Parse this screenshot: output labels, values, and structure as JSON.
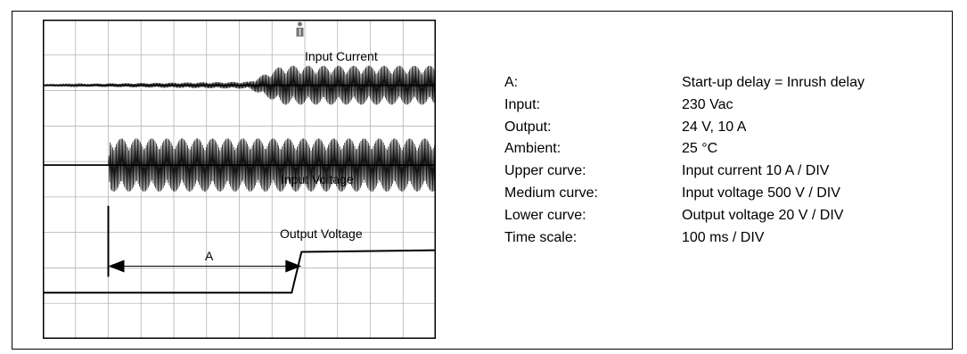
{
  "chart_data": {
    "type": "line",
    "title": "",
    "xlabel": "",
    "ylabel": "",
    "x_divisions": 12,
    "y_divisions": 9,
    "series": [
      {
        "name": "Input Current",
        "baseline_div": 1.85,
        "envelope": [
          {
            "t_div": 0,
            "amp_div": 0.02
          },
          {
            "t_div": 1.8,
            "amp_div": 0.05
          },
          {
            "t_div": 6.3,
            "amp_div": 0.1
          },
          {
            "t_div": 7.3,
            "amp_div": 0.55
          },
          {
            "t_div": 12,
            "amp_div": 0.55
          }
        ]
      },
      {
        "name": "Input Voltage",
        "baseline_div": 4.1,
        "envelope": [
          {
            "t_div": 0,
            "amp_div": 0.0
          },
          {
            "t_div": 2.0,
            "amp_div": 0.0
          },
          {
            "t_div": 2.05,
            "amp_div": 0.75
          },
          {
            "t_div": 12,
            "amp_div": 0.75
          }
        ]
      },
      {
        "name": "Output Voltage",
        "points": [
          {
            "t_div": 0,
            "v_div": 7.7
          },
          {
            "t_div": 7.6,
            "v_div": 7.7
          },
          {
            "t_div": 7.9,
            "v_div": 6.55
          },
          {
            "t_div": 12,
            "v_div": 6.5
          }
        ]
      }
    ],
    "annotations": [
      {
        "label": "A",
        "from_t_div": 2.0,
        "to_t_div": 7.9,
        "at_v_div": 6.95
      }
    ],
    "trigger_marker_t_div": 7.85
  },
  "labels": {
    "input_current": "Input Current",
    "input_voltage": "Input Voltage",
    "output_voltage": "Output Voltage",
    "a_marker": "A"
  },
  "info": [
    {
      "key": "A:",
      "value": "Start-up delay = Inrush delay"
    },
    {
      "key": "Input:",
      "value": "230 Vac"
    },
    {
      "key": "Output:",
      "value": "24 V, 10 A"
    },
    {
      "key": "Ambient:",
      "value": "25 °C"
    },
    {
      "key": "Upper curve:",
      "value": "Input current 10 A / DIV"
    },
    {
      "key": "Medium curve:",
      "value": "Input voltage 500 V / DIV"
    },
    {
      "key": "Lower curve:",
      "value": "Output voltage 20 V / DIV"
    },
    {
      "key": "Time scale:",
      "value": "100 ms / DIV"
    }
  ]
}
